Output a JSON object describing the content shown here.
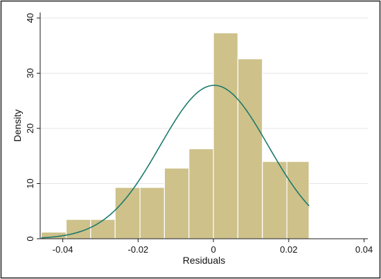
{
  "chart_data": {
    "type": "bar",
    "subtype": "histogram-with-normal-density",
    "xlabel": "Residuals",
    "ylabel": "Density",
    "xlim": [
      -0.046,
      0.041
    ],
    "ylim": [
      0,
      41
    ],
    "xticks": [
      -0.04,
      -0.02,
      0,
      0.02,
      0.04
    ],
    "xtick_labels": [
      "-0.04",
      "-0.02",
      "0",
      "0.02",
      "0.04"
    ],
    "yticks": [
      0,
      10,
      20,
      30,
      40
    ],
    "ytick_labels": [
      "0",
      "10",
      "20",
      "30",
      "40"
    ],
    "grid": "horizontal",
    "legend": "none",
    "histogram": {
      "bins": [
        {
          "x0": -0.0457,
          "x1": -0.0391,
          "density": 1.2
        },
        {
          "x0": -0.0391,
          "x1": -0.0326,
          "density": 3.5
        },
        {
          "x0": -0.0326,
          "x1": -0.0261,
          "density": 3.5
        },
        {
          "x0": -0.0261,
          "x1": -0.0195,
          "density": 9.3
        },
        {
          "x0": -0.0195,
          "x1": -0.013,
          "density": 9.3
        },
        {
          "x0": -0.013,
          "x1": -0.0065,
          "density": 12.8
        },
        {
          "x0": -0.0065,
          "x1": 0.0,
          "density": 16.3
        },
        {
          "x0": 0.0,
          "x1": 0.0065,
          "density": 37.3
        },
        {
          "x0": 0.0065,
          "x1": 0.013,
          "density": 32.6
        },
        {
          "x0": 0.013,
          "x1": 0.0195,
          "density": 14.0
        },
        {
          "x0": 0.0195,
          "x1": 0.0254,
          "density": 14.0
        }
      ]
    },
    "normal_curve": {
      "mean": 0.0002,
      "sd": 0.01435,
      "x_range": [
        -0.0457,
        0.0254
      ]
    },
    "colors": {
      "bar_fill": "#cec18a",
      "bar_stroke": "#ffffff",
      "curve": "#1c7a6c",
      "grid": "#e4e6ea",
      "axis": "#1a1a1a",
      "frame": "#222222"
    }
  }
}
